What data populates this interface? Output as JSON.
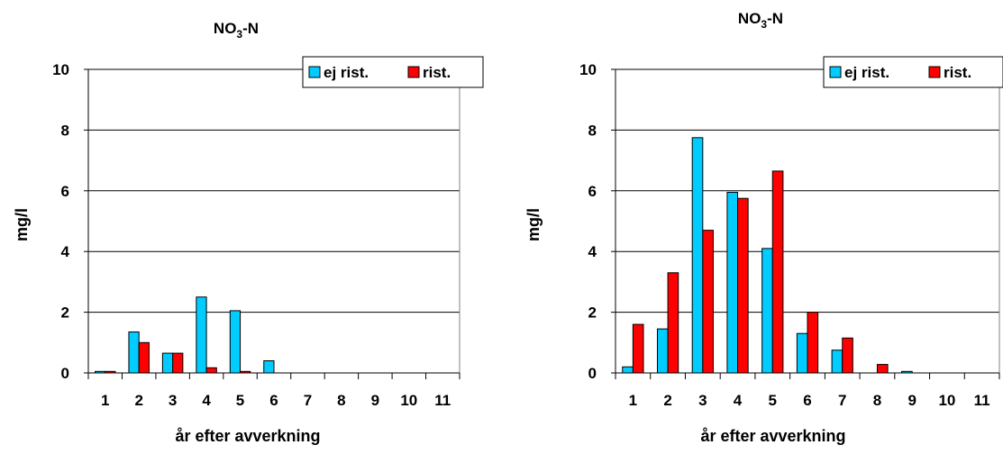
{
  "chart_data": [
    {
      "type": "bar",
      "title_main": "NO",
      "title_sub": "3",
      "title_tail": "-N",
      "xlabel": "år efter avverkning",
      "ylabel": "mg/l",
      "ylim": [
        0,
        10
      ],
      "yticks": [
        "0",
        "2",
        "4",
        "6",
        "8",
        "10"
      ],
      "categories": [
        "1",
        "2",
        "3",
        "4",
        "5",
        "6",
        "7",
        "8",
        "9",
        "10",
        "11"
      ],
      "legend_position": "top-right",
      "grid": true,
      "series": [
        {
          "name": "ej rist.",
          "color": "#00CCFF",
          "values": [
            0.05,
            1.35,
            0.65,
            2.5,
            2.05,
            0.4,
            0,
            0,
            0,
            0,
            0
          ]
        },
        {
          "name": "rist.",
          "color": "#FF0000",
          "values": [
            0.05,
            1.0,
            0.65,
            0.17,
            0.05,
            0,
            0,
            0,
            0,
            0,
            0
          ]
        }
      ]
    },
    {
      "type": "bar",
      "title_main": "NO",
      "title_sub": "3",
      "title_tail": "-N",
      "xlabel": "år efter avverkning",
      "ylabel": "mg/l",
      "ylim": [
        0,
        10
      ],
      "yticks": [
        "0",
        "2",
        "4",
        "6",
        "8",
        "10"
      ],
      "categories": [
        "1",
        "2",
        "3",
        "4",
        "5",
        "6",
        "7",
        "8",
        "9",
        "10",
        "11"
      ],
      "legend_position": "top-right",
      "grid": true,
      "series": [
        {
          "name": "ej rist.",
          "color": "#00CCFF",
          "values": [
            0.2,
            1.45,
            7.75,
            5.95,
            4.1,
            1.3,
            0.75,
            0,
            0.05,
            0,
            0
          ]
        },
        {
          "name": "rist.",
          "color": "#FF0000",
          "values": [
            1.6,
            3.3,
            4.7,
            5.75,
            6.65,
            2.0,
            1.15,
            0.28,
            0,
            0,
            0
          ]
        }
      ]
    }
  ]
}
